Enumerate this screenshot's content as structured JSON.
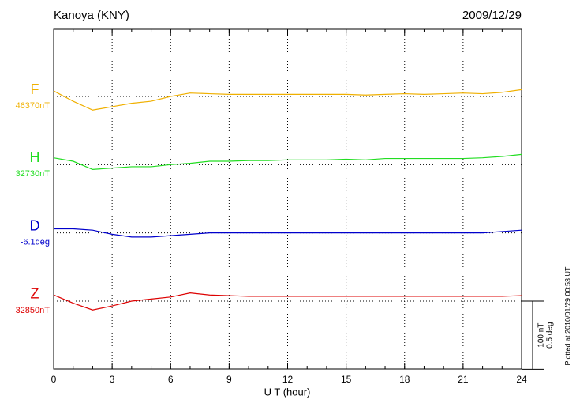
{
  "chart_data": {
    "type": "line",
    "title": "Kanoya (KNY)",
    "date": "2009/12/29",
    "x_label": "U T (hour)",
    "footnote": "Plotted at 2010/01/29 00:53 UT",
    "x": [
      0,
      1,
      2,
      3,
      4,
      5,
      6,
      7,
      8,
      9,
      10,
      11,
      12,
      13,
      14,
      15,
      16,
      17,
      18,
      19,
      20,
      21,
      22,
      23,
      24
    ],
    "xlim": [
      0,
      24
    ],
    "xticks": [
      0,
      3,
      6,
      9,
      12,
      15,
      18,
      21,
      24
    ],
    "grid": true,
    "scale_bar": {
      "nT": {
        "value": 100,
        "label": "100 nT"
      },
      "deg": {
        "value": 0.5,
        "label": "0.5 deg"
      }
    },
    "series": [
      {
        "name": "F",
        "color": "#f0b000",
        "unit": "nT",
        "baseline": {
          "value": 46370,
          "label": "46370nT"
        },
        "values": [
          8,
          -7,
          -20,
          -15,
          -10,
          -7,
          0,
          5,
          4,
          3,
          3,
          3,
          3,
          3,
          3,
          3,
          2,
          3,
          4,
          3,
          4,
          5,
          4,
          6,
          10
        ]
      },
      {
        "name": "H",
        "color": "#22dd22",
        "unit": "nT",
        "baseline": {
          "value": 32730,
          "label": "32730nT"
        },
        "values": [
          10,
          5,
          -7,
          -5,
          -3,
          -3,
          0,
          2,
          5,
          5,
          6,
          6,
          7,
          7,
          7,
          8,
          7,
          9,
          9,
          9,
          9,
          9,
          10,
          12,
          15
        ]
      },
      {
        "name": "D",
        "color": "#0000cc",
        "unit": "deg",
        "baseline": {
          "value": -6.1,
          "label": "-6.1deg"
        },
        "values": [
          0.03,
          0.03,
          0.02,
          -0.01,
          -0.03,
          -0.03,
          -0.02,
          -0.01,
          0,
          0,
          0,
          0,
          0,
          0,
          0,
          0,
          0,
          0,
          0,
          0,
          0,
          0,
          0,
          0.01,
          0.02
        ]
      },
      {
        "name": "Z",
        "color": "#dd0000",
        "unit": "nT",
        "baseline": {
          "value": 32850,
          "label": "32850nT"
        },
        "values": [
          9,
          -3,
          -13,
          -7,
          0,
          3,
          6,
          12,
          9,
          8,
          7,
          7,
          7,
          7,
          7,
          7,
          7,
          7,
          7,
          7,
          7,
          7,
          7,
          7,
          8
        ]
      }
    ]
  }
}
